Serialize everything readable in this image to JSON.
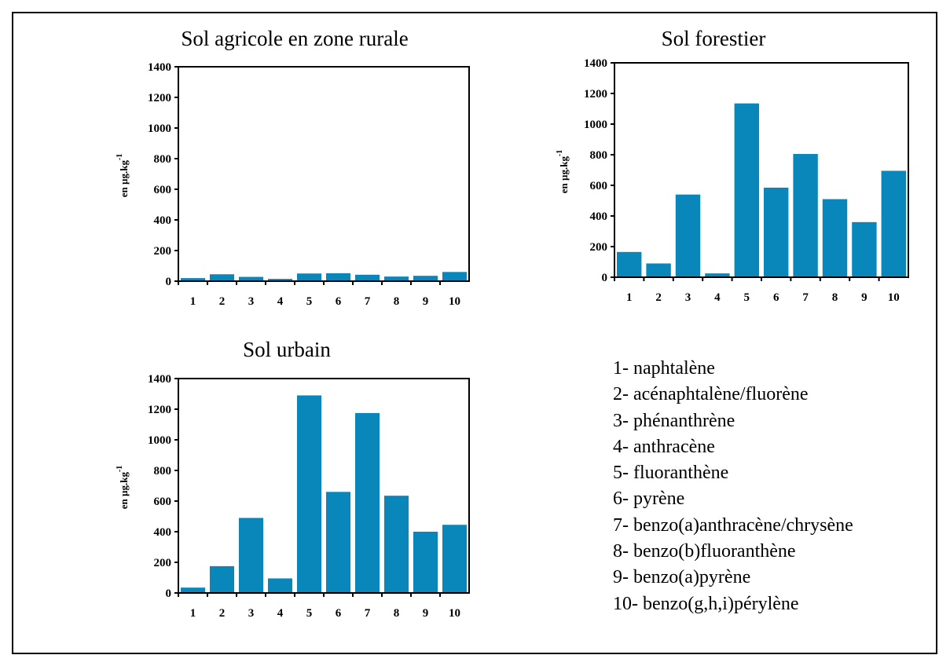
{
  "chart_data": [
    {
      "type": "bar",
      "title": "Sol agricole en zone rurale",
      "ylabel": "en µg.kg",
      "ylabel_superscript": "-1",
      "ylim": [
        0,
        1400
      ],
      "yticks": [
        0,
        200,
        400,
        600,
        800,
        1000,
        1200,
        1400
      ],
      "categories": [
        "1",
        "2",
        "3",
        "4",
        "5",
        "6",
        "7",
        "8",
        "9",
        "10"
      ],
      "values": [
        20,
        45,
        28,
        15,
        50,
        52,
        42,
        30,
        35,
        60
      ],
      "color": "#0a87ba"
    },
    {
      "type": "bar",
      "title": "Sol forestier",
      "ylabel": "en µg.kg",
      "ylabel_superscript": "-1",
      "ylim": [
        0,
        1400
      ],
      "yticks": [
        0,
        200,
        400,
        600,
        800,
        1000,
        1200,
        1400
      ],
      "categories": [
        "1",
        "2",
        "3",
        "4",
        "5",
        "6",
        "7",
        "8",
        "9",
        "10"
      ],
      "values": [
        165,
        90,
        540,
        25,
        1135,
        585,
        805,
        510,
        360,
        695
      ],
      "color": "#0a87ba"
    },
    {
      "type": "bar",
      "title": "Sol urbain",
      "ylabel": "en µg.kg",
      "ylabel_superscript": "-1",
      "ylim": [
        0,
        1400
      ],
      "yticks": [
        0,
        200,
        400,
        600,
        800,
        1000,
        1200,
        1400
      ],
      "categories": [
        "1",
        "2",
        "3",
        "4",
        "5",
        "6",
        "7",
        "8",
        "9",
        "10"
      ],
      "values": [
        35,
        175,
        490,
        95,
        1290,
        660,
        1175,
        635,
        400,
        445
      ],
      "color": "#0a87ba"
    }
  ],
  "legend": [
    "1- naphtalène",
    "2- acénaphtalène/fluorène",
    "3- phénanthrène",
    "4- anthracène",
    "5- fluoranthène",
    "6- pyrène",
    "7- benzo(a)anthracène/chrysène",
    "8- benzo(b)fluoranthène",
    "9- benzo(a)pyrène",
    "10- benzo(g,h,i)pérylène"
  ]
}
